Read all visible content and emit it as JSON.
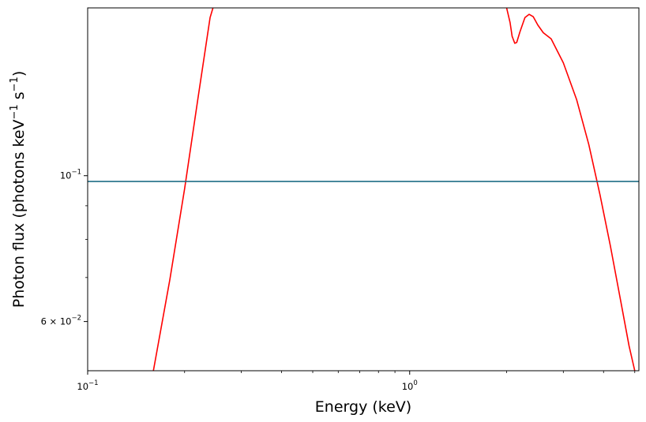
{
  "chart_data": {
    "type": "line",
    "title": "",
    "xlabel": "Energy (keV)",
    "ylabel": {
      "prefix": "Photon flux (photons keV",
      "sup1": "−1",
      "mid": " s",
      "sup2": "−1",
      "suffix": ")"
    },
    "xscale": "log",
    "yscale": "log",
    "xlim": [
      0.1,
      5.15
    ],
    "ylim": [
      0.0505,
      0.18
    ],
    "grid": false,
    "x_ticks": [
      {
        "value": 0.1,
        "base": "10",
        "exp": "−1"
      },
      {
        "value": 1,
        "base": "10",
        "exp": "0"
      }
    ],
    "y_ticks": [
      {
        "value": 0.1,
        "mant": "",
        "base": "10",
        "exp": "−1"
      },
      {
        "value": 0.06,
        "mant": "6 × ",
        "base": "10",
        "exp": "−2"
      }
    ],
    "series": [
      {
        "color": "#ff0000",
        "x": [
          0.16,
          0.18,
          0.2,
          0.22,
          0.24,
          0.245
        ],
        "y": [
          0.0505,
          0.0695,
          0.0955,
          0.131,
          0.174,
          0.18
        ]
      },
      {
        "color": "#ff0000",
        "x": [
          2.0,
          2.05,
          2.08,
          2.12,
          2.15,
          2.2,
          2.28,
          2.35,
          2.42,
          2.5,
          2.6,
          2.75,
          3.0,
          3.3,
          3.6,
          3.9,
          4.2,
          4.5,
          4.8,
          5.0
        ],
        "y": [
          0.18,
          0.171,
          0.163,
          0.159,
          0.1595,
          0.1655,
          0.174,
          0.176,
          0.1745,
          0.1695,
          0.165,
          0.1615,
          0.1485,
          0.1305,
          0.1115,
          0.0935,
          0.0782,
          0.0653,
          0.0551,
          0.0505
        ]
      },
      {
        "color": "#1f6e85",
        "x": [
          0.1,
          5.15
        ],
        "y": [
          0.098,
          0.098
        ]
      }
    ]
  }
}
